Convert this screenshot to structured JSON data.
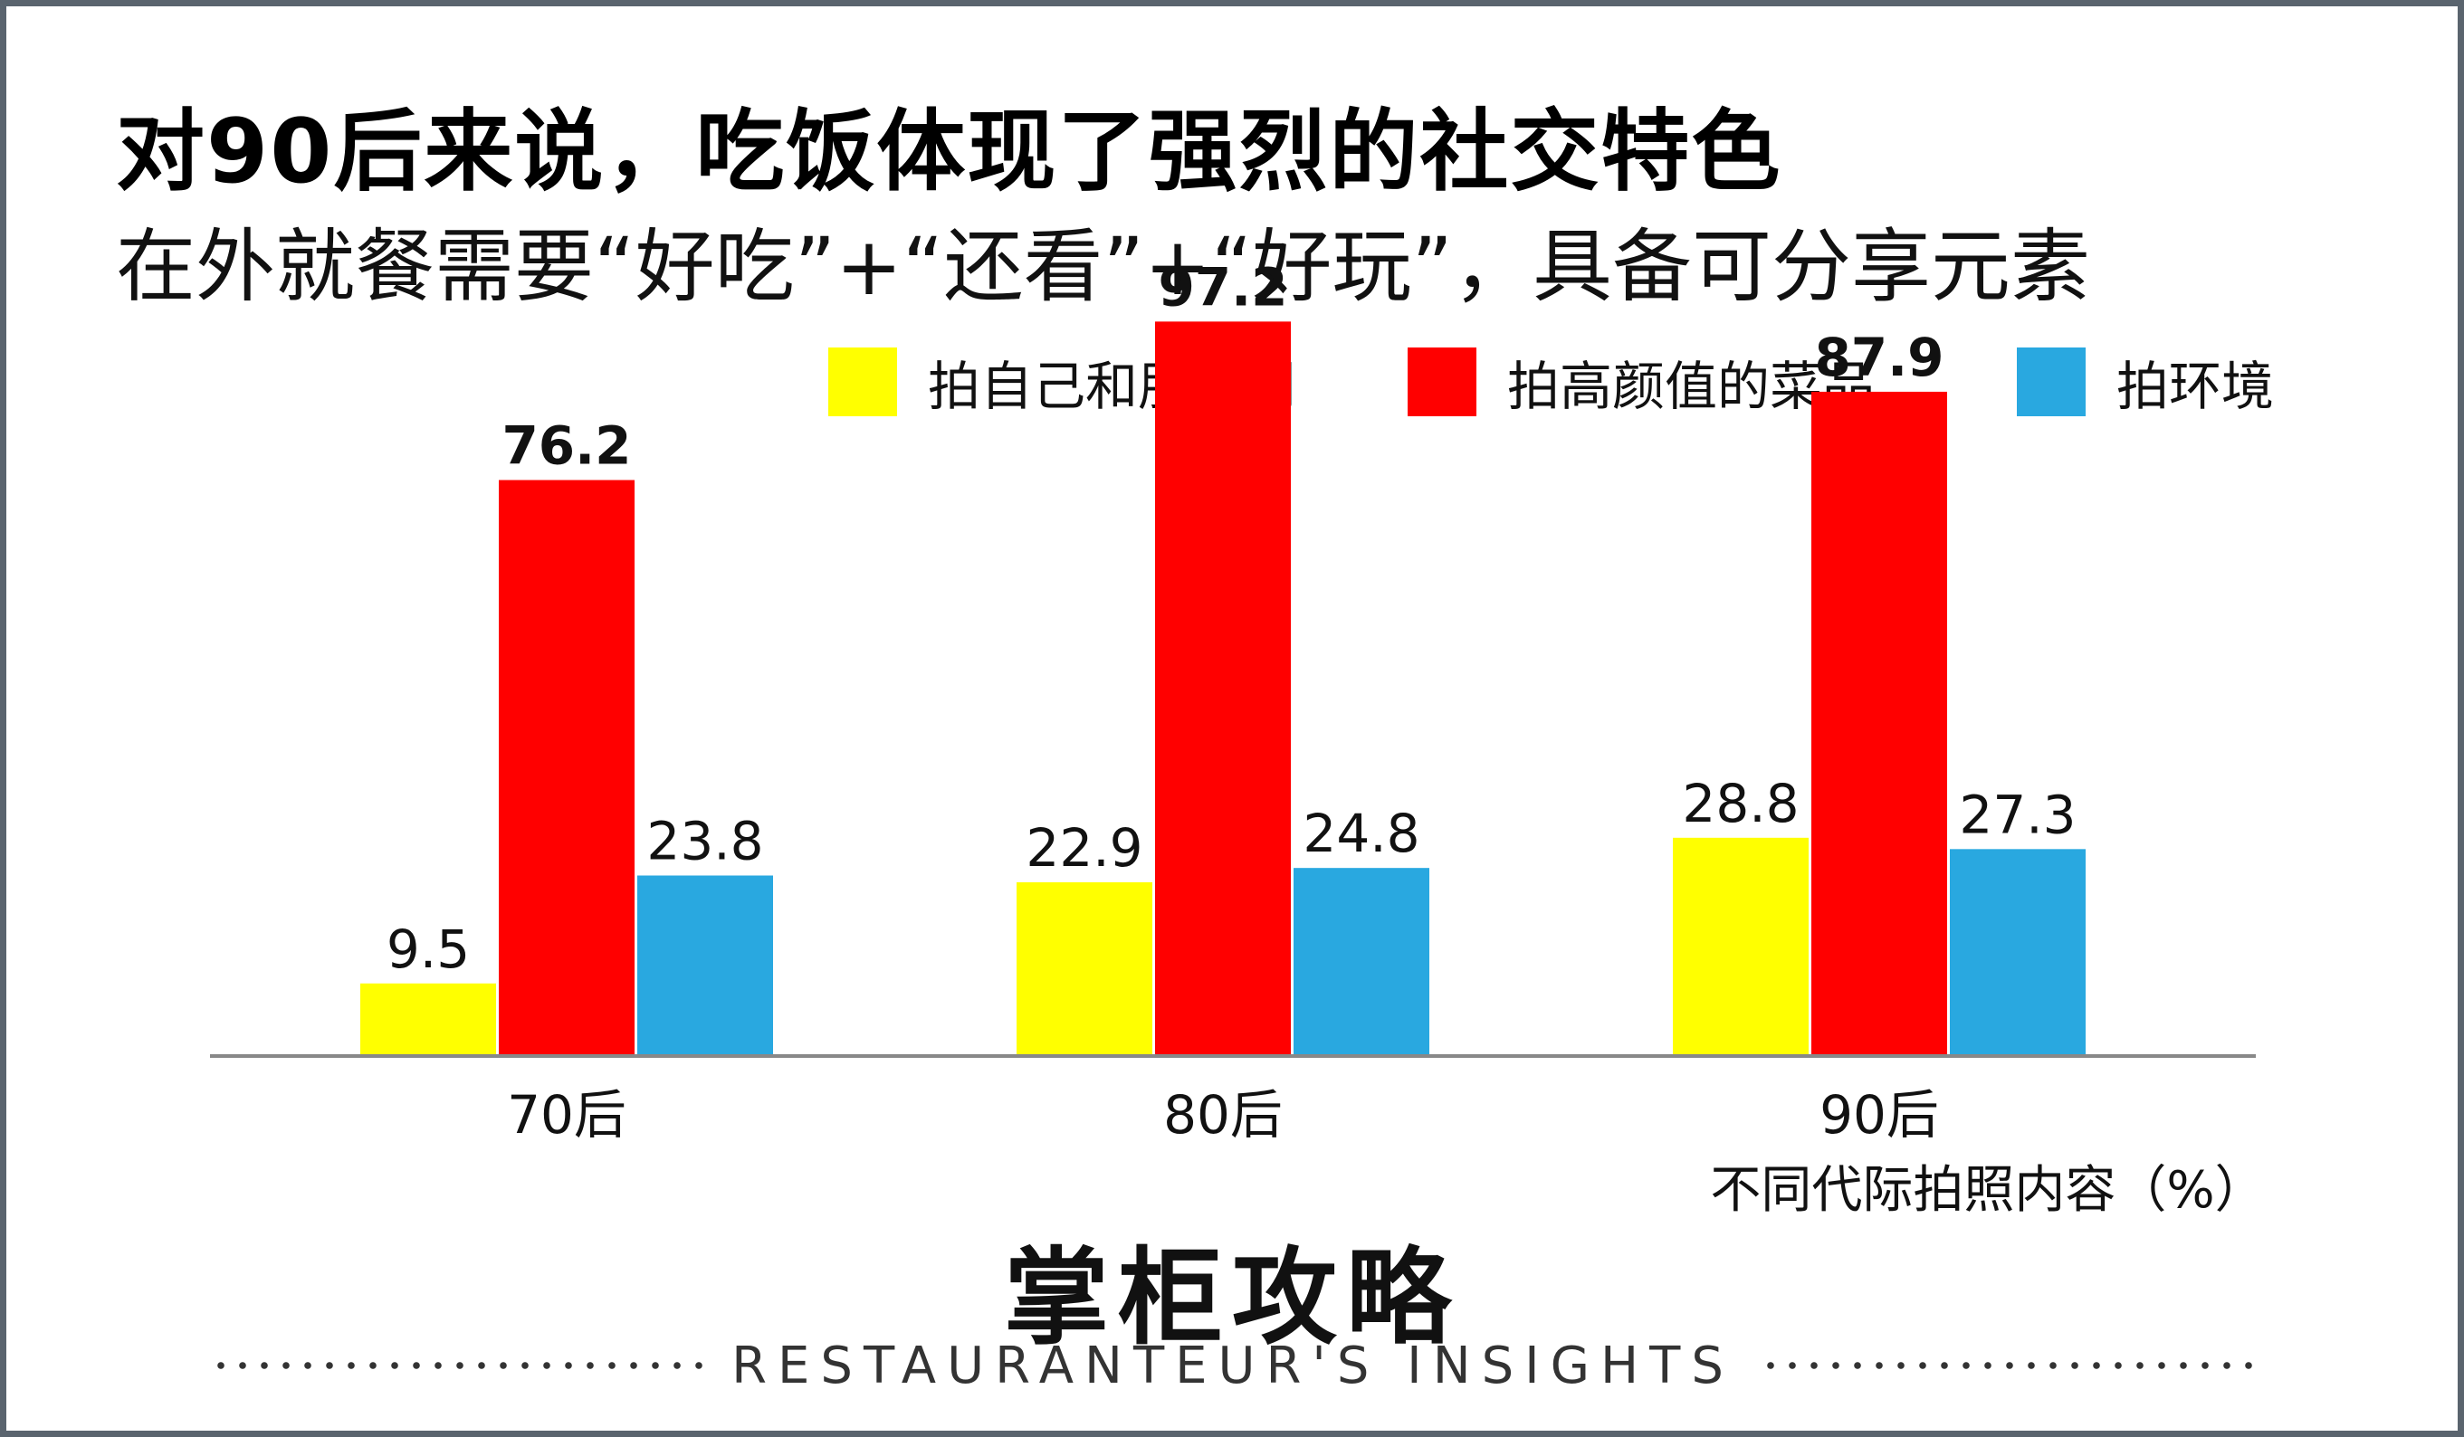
{
  "header": {
    "title": "对90后来说，吃饭体现了强烈的社交特色",
    "subtitle": "在外就餐需要“好吃”+“还看”+“好玩”，具备可分享元素"
  },
  "chart_data": {
    "type": "bar",
    "categories": [
      "70后",
      "80后",
      "90后"
    ],
    "series": [
      {
        "name": "拍自己和朋友们",
        "color": "#ffff00",
        "values": [
          9.5,
          22.9,
          28.8
        ]
      },
      {
        "name": "拍高颜值的菜品",
        "color": "#ff0000",
        "values": [
          76.2,
          97.2,
          87.9
        ]
      },
      {
        "name": "拍环境",
        "color": "#29a8e0",
        "values": [
          23.8,
          24.8,
          27.3
        ]
      }
    ],
    "xlabel": "不同代际拍照内容（%）",
    "ylabel": "",
    "ylim": [
      0,
      100
    ],
    "grid": false,
    "legend_position": "top-right"
  },
  "footer": {
    "brand": "掌柜攻略",
    "tagline": "RESTAURANTEUR'S   INSIGHTS"
  }
}
